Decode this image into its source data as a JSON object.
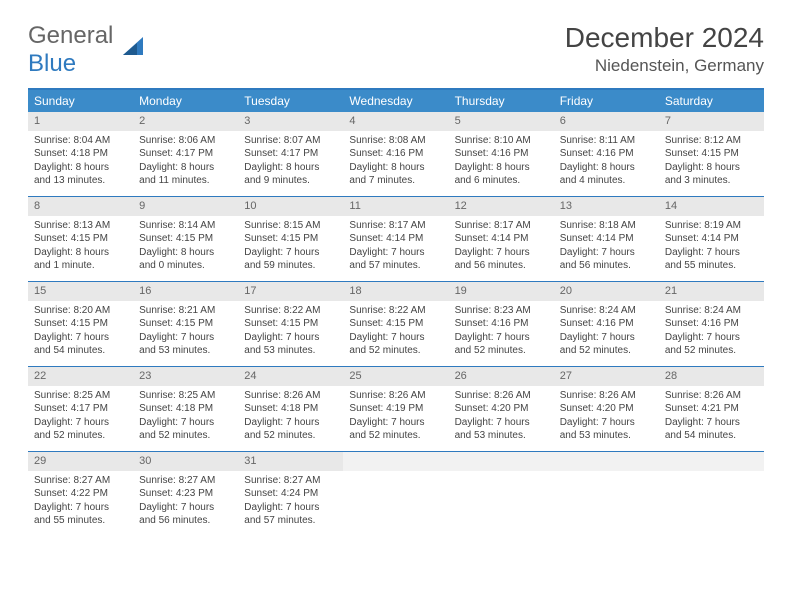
{
  "brand": {
    "part1": "General",
    "part2": "Blue"
  },
  "title": "December 2024",
  "location": "Niedenstein, Germany",
  "colors": {
    "header_bg": "#3b8bc9",
    "border": "#2f7abf",
    "daynum_bg": "#e8e8e8",
    "text": "#444444"
  },
  "weekdays": [
    "Sunday",
    "Monday",
    "Tuesday",
    "Wednesday",
    "Thursday",
    "Friday",
    "Saturday"
  ],
  "weeks": [
    [
      {
        "n": "1",
        "sr": "Sunrise: 8:04 AM",
        "ss": "Sunset: 4:18 PM",
        "d1": "Daylight: 8 hours",
        "d2": "and 13 minutes."
      },
      {
        "n": "2",
        "sr": "Sunrise: 8:06 AM",
        "ss": "Sunset: 4:17 PM",
        "d1": "Daylight: 8 hours",
        "d2": "and 11 minutes."
      },
      {
        "n": "3",
        "sr": "Sunrise: 8:07 AM",
        "ss": "Sunset: 4:17 PM",
        "d1": "Daylight: 8 hours",
        "d2": "and 9 minutes."
      },
      {
        "n": "4",
        "sr": "Sunrise: 8:08 AM",
        "ss": "Sunset: 4:16 PM",
        "d1": "Daylight: 8 hours",
        "d2": "and 7 minutes."
      },
      {
        "n": "5",
        "sr": "Sunrise: 8:10 AM",
        "ss": "Sunset: 4:16 PM",
        "d1": "Daylight: 8 hours",
        "d2": "and 6 minutes."
      },
      {
        "n": "6",
        "sr": "Sunrise: 8:11 AM",
        "ss": "Sunset: 4:16 PM",
        "d1": "Daylight: 8 hours",
        "d2": "and 4 minutes."
      },
      {
        "n": "7",
        "sr": "Sunrise: 8:12 AM",
        "ss": "Sunset: 4:15 PM",
        "d1": "Daylight: 8 hours",
        "d2": "and 3 minutes."
      }
    ],
    [
      {
        "n": "8",
        "sr": "Sunrise: 8:13 AM",
        "ss": "Sunset: 4:15 PM",
        "d1": "Daylight: 8 hours",
        "d2": "and 1 minute."
      },
      {
        "n": "9",
        "sr": "Sunrise: 8:14 AM",
        "ss": "Sunset: 4:15 PM",
        "d1": "Daylight: 8 hours",
        "d2": "and 0 minutes."
      },
      {
        "n": "10",
        "sr": "Sunrise: 8:15 AM",
        "ss": "Sunset: 4:15 PM",
        "d1": "Daylight: 7 hours",
        "d2": "and 59 minutes."
      },
      {
        "n": "11",
        "sr": "Sunrise: 8:17 AM",
        "ss": "Sunset: 4:14 PM",
        "d1": "Daylight: 7 hours",
        "d2": "and 57 minutes."
      },
      {
        "n": "12",
        "sr": "Sunrise: 8:17 AM",
        "ss": "Sunset: 4:14 PM",
        "d1": "Daylight: 7 hours",
        "d2": "and 56 minutes."
      },
      {
        "n": "13",
        "sr": "Sunrise: 8:18 AM",
        "ss": "Sunset: 4:14 PM",
        "d1": "Daylight: 7 hours",
        "d2": "and 56 minutes."
      },
      {
        "n": "14",
        "sr": "Sunrise: 8:19 AM",
        "ss": "Sunset: 4:14 PM",
        "d1": "Daylight: 7 hours",
        "d2": "and 55 minutes."
      }
    ],
    [
      {
        "n": "15",
        "sr": "Sunrise: 8:20 AM",
        "ss": "Sunset: 4:15 PM",
        "d1": "Daylight: 7 hours",
        "d2": "and 54 minutes."
      },
      {
        "n": "16",
        "sr": "Sunrise: 8:21 AM",
        "ss": "Sunset: 4:15 PM",
        "d1": "Daylight: 7 hours",
        "d2": "and 53 minutes."
      },
      {
        "n": "17",
        "sr": "Sunrise: 8:22 AM",
        "ss": "Sunset: 4:15 PM",
        "d1": "Daylight: 7 hours",
        "d2": "and 53 minutes."
      },
      {
        "n": "18",
        "sr": "Sunrise: 8:22 AM",
        "ss": "Sunset: 4:15 PM",
        "d1": "Daylight: 7 hours",
        "d2": "and 52 minutes."
      },
      {
        "n": "19",
        "sr": "Sunrise: 8:23 AM",
        "ss": "Sunset: 4:16 PM",
        "d1": "Daylight: 7 hours",
        "d2": "and 52 minutes."
      },
      {
        "n": "20",
        "sr": "Sunrise: 8:24 AM",
        "ss": "Sunset: 4:16 PM",
        "d1": "Daylight: 7 hours",
        "d2": "and 52 minutes."
      },
      {
        "n": "21",
        "sr": "Sunrise: 8:24 AM",
        "ss": "Sunset: 4:16 PM",
        "d1": "Daylight: 7 hours",
        "d2": "and 52 minutes."
      }
    ],
    [
      {
        "n": "22",
        "sr": "Sunrise: 8:25 AM",
        "ss": "Sunset: 4:17 PM",
        "d1": "Daylight: 7 hours",
        "d2": "and 52 minutes."
      },
      {
        "n": "23",
        "sr": "Sunrise: 8:25 AM",
        "ss": "Sunset: 4:18 PM",
        "d1": "Daylight: 7 hours",
        "d2": "and 52 minutes."
      },
      {
        "n": "24",
        "sr": "Sunrise: 8:26 AM",
        "ss": "Sunset: 4:18 PM",
        "d1": "Daylight: 7 hours",
        "d2": "and 52 minutes."
      },
      {
        "n": "25",
        "sr": "Sunrise: 8:26 AM",
        "ss": "Sunset: 4:19 PM",
        "d1": "Daylight: 7 hours",
        "d2": "and 52 minutes."
      },
      {
        "n": "26",
        "sr": "Sunrise: 8:26 AM",
        "ss": "Sunset: 4:20 PM",
        "d1": "Daylight: 7 hours",
        "d2": "and 53 minutes."
      },
      {
        "n": "27",
        "sr": "Sunrise: 8:26 AM",
        "ss": "Sunset: 4:20 PM",
        "d1": "Daylight: 7 hours",
        "d2": "and 53 minutes."
      },
      {
        "n": "28",
        "sr": "Sunrise: 8:26 AM",
        "ss": "Sunset: 4:21 PM",
        "d1": "Daylight: 7 hours",
        "d2": "and 54 minutes."
      }
    ],
    [
      {
        "n": "29",
        "sr": "Sunrise: 8:27 AM",
        "ss": "Sunset: 4:22 PM",
        "d1": "Daylight: 7 hours",
        "d2": "and 55 minutes."
      },
      {
        "n": "30",
        "sr": "Sunrise: 8:27 AM",
        "ss": "Sunset: 4:23 PM",
        "d1": "Daylight: 7 hours",
        "d2": "and 56 minutes."
      },
      {
        "n": "31",
        "sr": "Sunrise: 8:27 AM",
        "ss": "Sunset: 4:24 PM",
        "d1": "Daylight: 7 hours",
        "d2": "and 57 minutes."
      },
      {
        "empty": true
      },
      {
        "empty": true
      },
      {
        "empty": true
      },
      {
        "empty": true
      }
    ]
  ]
}
